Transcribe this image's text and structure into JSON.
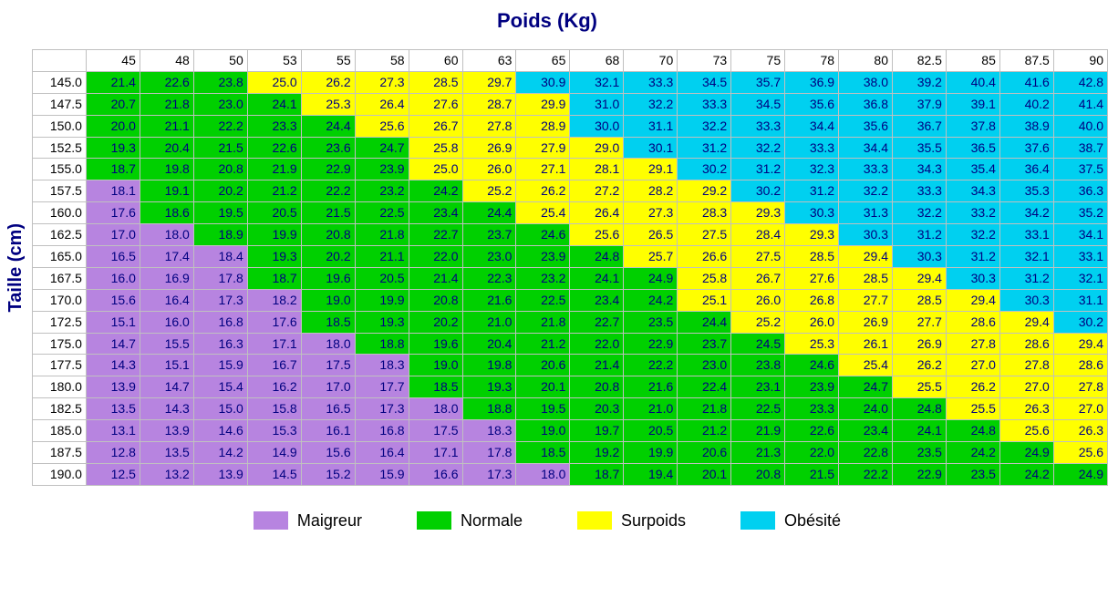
{
  "title": "Poids (Kg)",
  "y_axis_label": "Taille (cm)",
  "colors": {
    "maigreur": "#b784e0",
    "normale": "#00d000",
    "surpoids": "#ffff00",
    "obesite": "#00d0f0",
    "grid": "#c0c0c0",
    "header_bg": "#ffffff",
    "text": "#000080"
  },
  "thresholds": {
    "normale_min": 18.5,
    "surpoids_min": 25.0,
    "obesite_min": 30.0
  },
  "weights": [
    45,
    48,
    50,
    53,
    55,
    58,
    60,
    63,
    65,
    68,
    70,
    73,
    75,
    78,
    80,
    82.5,
    85,
    87.5,
    90
  ],
  "heights": [
    145.0,
    147.5,
    150.0,
    152.5,
    155.0,
    157.5,
    160.0,
    162.5,
    165.0,
    167.5,
    170.0,
    172.5,
    175.0,
    177.5,
    180.0,
    182.5,
    185.0,
    187.5,
    190.0
  ],
  "rows": [
    [
      21.4,
      22.6,
      23.8,
      25.0,
      26.2,
      27.3,
      28.5,
      29.7,
      30.9,
      32.1,
      33.3,
      34.5,
      35.7,
      36.9,
      38.0,
      39.2,
      40.4,
      41.6,
      42.8
    ],
    [
      20.7,
      21.8,
      23.0,
      24.1,
      25.3,
      26.4,
      27.6,
      28.7,
      29.9,
      31.0,
      32.2,
      33.3,
      34.5,
      35.6,
      36.8,
      37.9,
      39.1,
      40.2,
      41.4
    ],
    [
      20.0,
      21.1,
      22.2,
      23.3,
      24.4,
      25.6,
      26.7,
      27.8,
      28.9,
      30.0,
      31.1,
      32.2,
      33.3,
      34.4,
      35.6,
      36.7,
      37.8,
      38.9,
      40.0
    ],
    [
      19.3,
      20.4,
      21.5,
      22.6,
      23.6,
      24.7,
      25.8,
      26.9,
      27.9,
      29.0,
      30.1,
      31.2,
      32.2,
      33.3,
      34.4,
      35.5,
      36.5,
      37.6,
      38.7
    ],
    [
      18.7,
      19.8,
      20.8,
      21.9,
      22.9,
      23.9,
      25.0,
      26.0,
      27.1,
      28.1,
      29.1,
      30.2,
      31.2,
      32.3,
      33.3,
      34.3,
      35.4,
      36.4,
      37.5
    ],
    [
      18.1,
      19.1,
      20.2,
      21.2,
      22.2,
      23.2,
      24.2,
      25.2,
      26.2,
      27.2,
      28.2,
      29.2,
      30.2,
      31.2,
      32.2,
      33.3,
      34.3,
      35.3,
      36.3
    ],
    [
      17.6,
      18.6,
      19.5,
      20.5,
      21.5,
      22.5,
      23.4,
      24.4,
      25.4,
      26.4,
      27.3,
      28.3,
      29.3,
      30.3,
      31.3,
      32.2,
      33.2,
      34.2,
      35.2
    ],
    [
      17.0,
      18.0,
      18.9,
      19.9,
      20.8,
      21.8,
      22.7,
      23.7,
      24.6,
      25.6,
      26.5,
      27.5,
      28.4,
      29.3,
      30.3,
      31.2,
      32.2,
      33.1,
      34.1
    ],
    [
      16.5,
      17.4,
      18.4,
      19.3,
      20.2,
      21.1,
      22.0,
      23.0,
      23.9,
      24.8,
      25.7,
      26.6,
      27.5,
      28.5,
      29.4,
      30.3,
      31.2,
      32.1,
      33.1
    ],
    [
      16.0,
      16.9,
      17.8,
      18.7,
      19.6,
      20.5,
      21.4,
      22.3,
      23.2,
      24.1,
      24.9,
      25.8,
      26.7,
      27.6,
      28.5,
      29.4,
      30.3,
      31.2,
      32.1
    ],
    [
      15.6,
      16.4,
      17.3,
      18.2,
      19.0,
      19.9,
      20.8,
      21.6,
      22.5,
      23.4,
      24.2,
      25.1,
      26.0,
      26.8,
      27.7,
      28.5,
      29.4,
      30.3,
      31.1
    ],
    [
      15.1,
      16.0,
      16.8,
      17.6,
      18.5,
      19.3,
      20.2,
      21.0,
      21.8,
      22.7,
      23.5,
      24.4,
      25.2,
      26.0,
      26.9,
      27.7,
      28.6,
      29.4,
      30.2
    ],
    [
      14.7,
      15.5,
      16.3,
      17.1,
      18.0,
      18.8,
      19.6,
      20.4,
      21.2,
      22.0,
      22.9,
      23.7,
      24.5,
      25.3,
      26.1,
      26.9,
      27.8,
      28.6,
      29.4
    ],
    [
      14.3,
      15.1,
      15.9,
      16.7,
      17.5,
      18.3,
      19.0,
      19.8,
      20.6,
      21.4,
      22.2,
      23.0,
      23.8,
      24.6,
      25.4,
      26.2,
      27.0,
      27.8,
      28.6
    ],
    [
      13.9,
      14.7,
      15.4,
      16.2,
      17.0,
      17.7,
      18.5,
      19.3,
      20.1,
      20.8,
      21.6,
      22.4,
      23.1,
      23.9,
      24.7,
      25.5,
      26.2,
      27.0,
      27.8
    ],
    [
      13.5,
      14.3,
      15.0,
      15.8,
      16.5,
      17.3,
      18.0,
      18.8,
      19.5,
      20.3,
      21.0,
      21.8,
      22.5,
      23.3,
      24.0,
      24.8,
      25.5,
      26.3,
      27.0
    ],
    [
      13.1,
      13.9,
      14.6,
      15.3,
      16.1,
      16.8,
      17.5,
      18.3,
      19.0,
      19.7,
      20.5,
      21.2,
      21.9,
      22.6,
      23.4,
      24.1,
      24.8,
      25.6,
      26.3
    ],
    [
      12.8,
      13.5,
      14.2,
      14.9,
      15.6,
      16.4,
      17.1,
      17.8,
      18.5,
      19.2,
      19.9,
      20.6,
      21.3,
      22.0,
      22.8,
      23.5,
      24.2,
      24.9,
      25.6
    ],
    [
      12.5,
      13.2,
      13.9,
      14.5,
      15.2,
      15.9,
      16.6,
      17.3,
      18.0,
      18.7,
      19.4,
      20.1,
      20.8,
      21.5,
      22.2,
      22.9,
      23.5,
      24.2,
      24.9
    ]
  ],
  "legend": [
    {
      "label": "Maigreur",
      "color_key": "maigreur"
    },
    {
      "label": "Normale",
      "color_key": "normale"
    },
    {
      "label": "Surpoids",
      "color_key": "surpoids"
    },
    {
      "label": "Obésité",
      "color_key": "obesite"
    }
  ],
  "cell_font_size": 14,
  "title_font_size": 22,
  "legend_font_size": 18
}
